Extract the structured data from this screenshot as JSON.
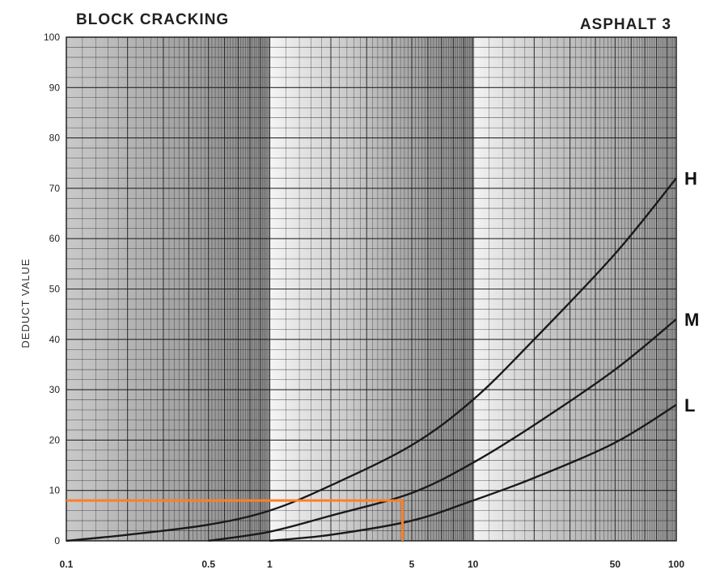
{
  "chart_data": {
    "type": "line",
    "title": "BLOCK CRACKING",
    "subtitle": "ASPHALT 3",
    "ylabel": "DEDUCT VALUE",
    "xlabel": "",
    "x_scale": "log",
    "xlim": [
      0.1,
      100
    ],
    "ylim": [
      0,
      100
    ],
    "x_ticks": [
      0.1,
      0.5,
      1,
      5,
      10,
      50,
      100
    ],
    "x_tick_labels": [
      "0.1",
      "0.5",
      "1",
      "5",
      "10",
      "50",
      "100"
    ],
    "y_ticks": [
      0,
      10,
      20,
      30,
      40,
      50,
      60,
      70,
      80,
      90,
      100
    ],
    "y_tick_labels": [
      "0",
      "10",
      "20",
      "30",
      "40",
      "50",
      "60",
      "70",
      "80",
      "90",
      "100"
    ],
    "grid": true,
    "series": [
      {
        "name": "H",
        "color": "#1a1a1a",
        "points": [
          [
            0.1,
            0
          ],
          [
            0.2,
            1.2
          ],
          [
            0.5,
            3.2
          ],
          [
            1,
            6
          ],
          [
            2,
            11
          ],
          [
            5,
            19
          ],
          [
            10,
            28
          ],
          [
            20,
            40
          ],
          [
            50,
            57
          ],
          [
            100,
            72
          ]
        ]
      },
      {
        "name": "M",
        "color": "#1a1a1a",
        "points": [
          [
            0.5,
            0
          ],
          [
            1,
            1.8
          ],
          [
            2,
            5
          ],
          [
            5,
            9.5
          ],
          [
            10,
            15.5
          ],
          [
            20,
            23
          ],
          [
            50,
            34
          ],
          [
            100,
            44
          ]
        ]
      },
      {
        "name": "L",
        "color": "#1a1a1a",
        "points": [
          [
            1,
            0
          ],
          [
            2,
            1.2
          ],
          [
            5,
            4
          ],
          [
            10,
            8
          ],
          [
            20,
            12.5
          ],
          [
            50,
            19.5
          ],
          [
            100,
            27
          ]
        ]
      }
    ],
    "annotations": [
      {
        "type": "guide-line",
        "color": "#ff7f27",
        "points": [
          [
            0.1,
            8
          ],
          [
            4.5,
            8
          ],
          [
            4.5,
            0
          ]
        ]
      }
    ]
  }
}
